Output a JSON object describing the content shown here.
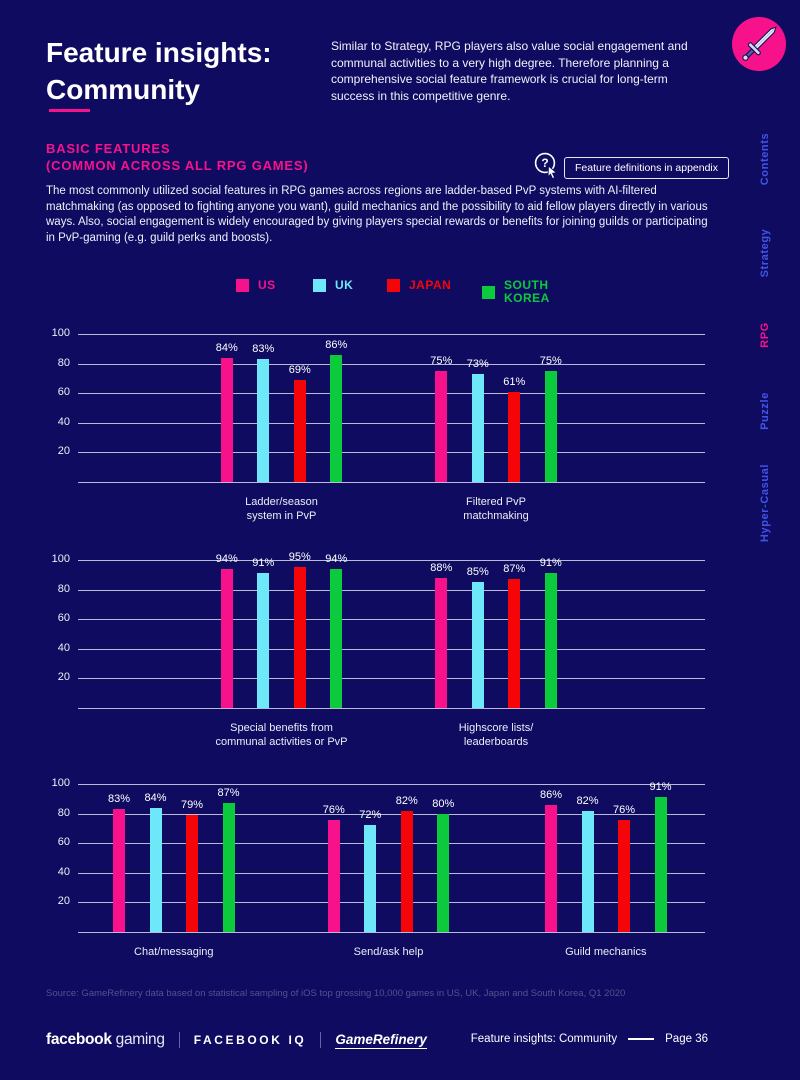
{
  "page": {
    "background": "#0f0b60"
  },
  "header": {
    "title_line1": "Feature insights:",
    "title_line2": "Community",
    "intro": "Similar to Strategy, RPG players also value social engagement and communal activities to a very high degree. Therefore planning a comprehensive social feature framework is crucial for long-term success in this competitive genre.",
    "badge_icon": "sword-icon",
    "badge_color": "#f7128b"
  },
  "section": {
    "heading_line1": "BASIC FEATURES",
    "heading_line2": "(COMMON ACROSS ALL RPG GAMES)",
    "appendix_button_label": "Feature definitions in appendix",
    "body": "The most commonly utilized social features in RPG games across regions are ladder-based PvP systems with AI-filtered matchmaking (as opposed to fighting anyone you want), guild mechanics and the possibility to aid fellow players directly in various ways. Also, social engagement is widely encouraged by giving players special rewards or benefits for joining guilds or participating in PvP-gaming (e.g. guild perks and boosts)."
  },
  "sidebar": {
    "items": [
      {
        "label": "Contents",
        "active": false
      },
      {
        "label": "Strategy",
        "active": false
      },
      {
        "label": "RPG",
        "active": true
      },
      {
        "label": "Puzzle",
        "active": false
      },
      {
        "label": "Hyper-Casual",
        "active": false
      }
    ]
  },
  "chart_data": {
    "type": "bar",
    "value_format": "percent",
    "ylim": [
      0,
      100
    ],
    "yticks": [
      20,
      40,
      60,
      80,
      100
    ],
    "grid": true,
    "legend_position": "top",
    "series": [
      {
        "name": "US",
        "color": "#f7128b"
      },
      {
        "name": "UK",
        "color": "#6ee8f8"
      },
      {
        "name": "JAPAN",
        "color": "#f60508"
      },
      {
        "name": "SOUTH KOREA",
        "color": "#0bcb3d"
      }
    ],
    "rows": [
      {
        "groups": [
          {
            "category": "Ladder/season\nsystem in PvP",
            "values": [
              84,
              83,
              69,
              86
            ]
          },
          {
            "category": "Filtered PvP\nmatchmaking",
            "values": [
              75,
              73,
              61,
              75
            ]
          }
        ]
      },
      {
        "groups": [
          {
            "category": "Special benefits from\ncommunal activities or PvP",
            "values": [
              94,
              91,
              95,
              94
            ]
          },
          {
            "category": "Highscore lists/\nleaderboards",
            "values": [
              88,
              85,
              87,
              91
            ]
          }
        ]
      },
      {
        "groups": [
          {
            "category": "Chat/messaging",
            "values": [
              83,
              84,
              79,
              87
            ]
          },
          {
            "category": "Send/ask help",
            "values": [
              76,
              72,
              82,
              80
            ]
          },
          {
            "category": "Guild mechanics",
            "values": [
              86,
              82,
              76,
              91
            ]
          }
        ]
      }
    ]
  },
  "source": "Source: GameRefinery data based on statistical sampling of iOS top grossing 10,000 games in US, UK, Japan and South Korea, Q1 2020",
  "footer": {
    "brand_fb_bold": "facebook",
    "brand_fb_light": "gaming",
    "brand_iq": "FACEBOOK IQ",
    "brand_gameref": "GameRefinery",
    "page_label": "Feature insights: Community",
    "page_number": "Page 36"
  }
}
